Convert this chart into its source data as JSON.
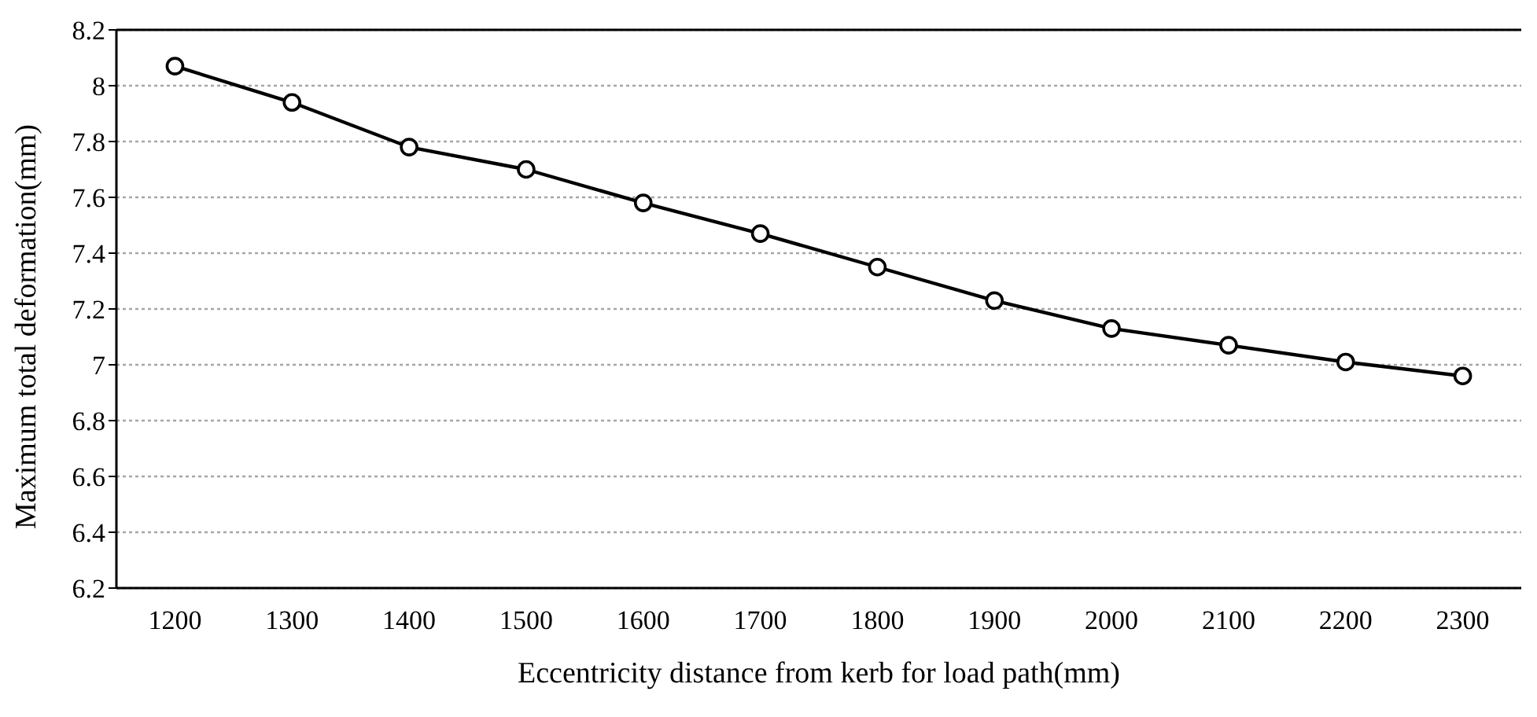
{
  "chart_data": {
    "type": "line",
    "xlabel": "Eccentricity distance from kerb for load path(mm)",
    "ylabel": "Maximum total deformation(mm)",
    "categories": [
      "1200",
      "1300",
      "1400",
      "1500",
      "1600",
      "1700",
      "1800",
      "1900",
      "2000",
      "2100",
      "2200",
      "2300"
    ],
    "series": [
      {
        "color": "#000000",
        "values": [
          8.07,
          7.94,
          7.78,
          7.7,
          7.58,
          7.47,
          7.35,
          7.23,
          7.13,
          7.07,
          7.01,
          6.96
        ]
      }
    ],
    "ylim": [
      6.2,
      8.2
    ],
    "yticks": [
      6.2,
      6.4,
      6.6,
      6.8,
      7,
      7.2,
      7.4,
      7.6,
      7.8,
      8,
      8.2
    ],
    "grid": "y",
    "legend": false,
    "marker": "circle",
    "line_style": "solid"
  }
}
